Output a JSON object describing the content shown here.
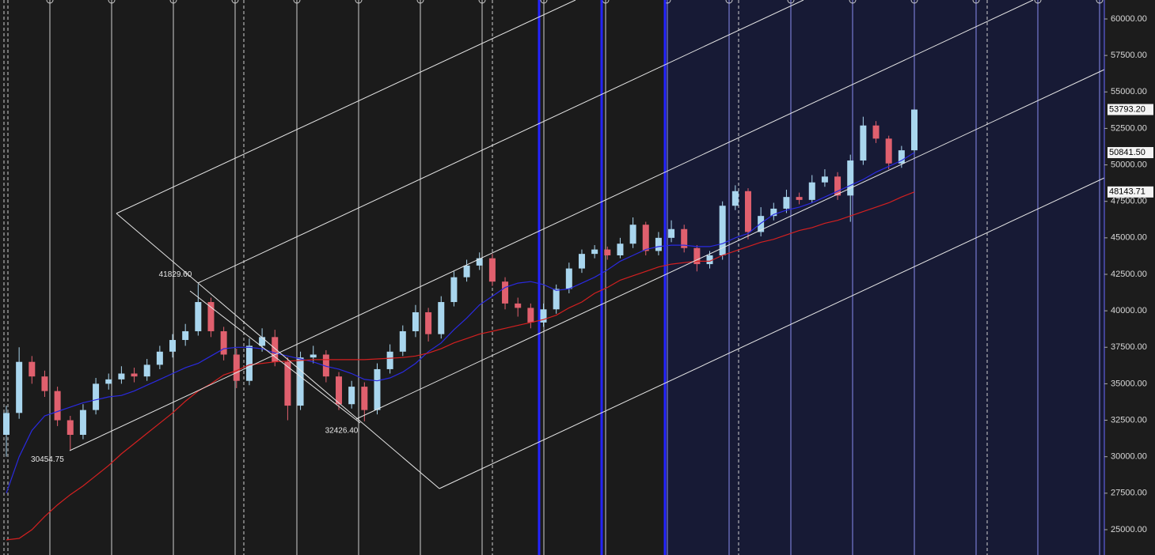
{
  "chart_data": {
    "type": "candlestick",
    "open": [
      31500,
      33000,
      36500,
      35500,
      34500,
      32500,
      31500,
      33200,
      35000,
      35300,
      35700,
      35500,
      36300,
      37200,
      38000,
      38600,
      40600,
      38600,
      37000,
      35200,
      37600,
      38200,
      36500,
      33500,
      36800,
      37000,
      35500,
      33600,
      34800,
      33200,
      36000,
      37200,
      38600,
      39900,
      38400,
      40600,
      42300,
      43100,
      43600,
      42000,
      40500,
      40200,
      39200,
      40100,
      41500,
      42900,
      43900,
      44200,
      43800,
      44600,
      45900,
      44100,
      45000,
      45600,
      44300,
      43200,
      43800,
      47200,
      48200,
      45400,
      46500,
      47000,
      47800,
      47600,
      48800,
      49200,
      47900,
      50300,
      52700,
      51800,
      50100,
      51000
    ],
    "high": [
      33500,
      37500,
      36900,
      35900,
      34800,
      32800,
      33600,
      35400,
      35700,
      36200,
      36100,
      36700,
      37600,
      38400,
      39100,
      41829.6,
      40900,
      38900,
      37400,
      38100,
      38800,
      38700,
      36800,
      37200,
      37600,
      37300,
      35800,
      35200,
      35100,
      36400,
      37700,
      39000,
      40400,
      40200,
      41000,
      42700,
      43500,
      44000,
      43900,
      42300,
      40900,
      40500,
      40500,
      41800,
      43300,
      44200,
      44500,
      44400,
      45000,
      46400,
      46100,
      45400,
      46200,
      45900,
      44500,
      44100,
      47500,
      48600,
      48400,
      47100,
      47400,
      48300,
      48100,
      49300,
      49700,
      49500,
      50700,
      53300,
      53000,
      52000,
      51300,
      53793.2
    ],
    "low": [
      30000,
      32600,
      35000,
      34100,
      32100,
      30454.75,
      31200,
      32900,
      34600,
      35000,
      35100,
      35200,
      36000,
      36800,
      37600,
      38300,
      38200,
      36600,
      34700,
      34900,
      37200,
      36200,
      32500,
      33200,
      36400,
      35100,
      33200,
      33300,
      32426.4,
      32900,
      35700,
      36900,
      38200,
      37900,
      38100,
      40300,
      42000,
      42800,
      41700,
      40100,
      39600,
      38800,
      38900,
      39800,
      41200,
      42600,
      43600,
      43500,
      43600,
      44300,
      43800,
      43800,
      44700,
      44000,
      42700,
      42900,
      43500,
      46900,
      44900,
      45100,
      46200,
      46700,
      47300,
      47400,
      48500,
      47600,
      46100,
      50000,
      51500,
      49700,
      49800,
      50800
    ],
    "close": [
      33000,
      36500,
      35500,
      34500,
      32500,
      31500,
      33200,
      35000,
      35300,
      35700,
      35500,
      36300,
      37200,
      38000,
      38600,
      40600,
      38600,
      37000,
      35200,
      37600,
      38200,
      36500,
      33500,
      36800,
      37000,
      35500,
      33600,
      34800,
      33200,
      36000,
      37200,
      38600,
      39900,
      38400,
      40600,
      42300,
      43100,
      43600,
      42000,
      40500,
      40200,
      39200,
      40100,
      41500,
      42900,
      43900,
      44200,
      43800,
      44600,
      45900,
      44100,
      45000,
      45600,
      44300,
      43200,
      43800,
      47200,
      48200,
      45400,
      46500,
      47000,
      47800,
      47600,
      48800,
      49200,
      47900,
      50300,
      52700,
      51800,
      50100,
      51000,
      53793.2
    ],
    "up_color": "#a9d6ee",
    "down_color": "#e0606e",
    "series": [
      {
        "color": "#2a2ae0",
        "values": [
          27500,
          30000,
          31800,
          32800,
          33100,
          33400,
          33700,
          33900,
          34100,
          34200,
          34500,
          34900,
          35300,
          35700,
          36100,
          36400,
          36900,
          37400,
          37500,
          37500,
          37400,
          37100,
          36900,
          36700,
          36500,
          36200,
          36000,
          35700,
          35300,
          35200,
          35400,
          35800,
          36400,
          37200,
          37800,
          38700,
          39500,
          40400,
          41000,
          41600,
          41900,
          42000,
          41800,
          41400,
          41500,
          41900,
          42300,
          42800,
          43400,
          43800,
          44200,
          44400,
          44500,
          44500,
          44400,
          44400,
          44600,
          45000,
          45300,
          46000,
          46600,
          46900,
          47100,
          47400,
          47800,
          48200,
          48600,
          49000,
          49500,
          49900,
          50300,
          50841.5
        ]
      },
      {
        "color": "#d42020",
        "values": [
          24300,
          24400,
          25000,
          25900,
          26700,
          27400,
          28000,
          28700,
          29400,
          30200,
          30900,
          31600,
          32300,
          33000,
          33800,
          34500,
          35000,
          35600,
          35900,
          36300,
          36400,
          36500,
          36550,
          36600,
          36650,
          36650,
          36650,
          36650,
          36650,
          36700,
          36750,
          36800,
          36900,
          37100,
          37400,
          37800,
          38100,
          38400,
          38600,
          38800,
          39000,
          39200,
          39400,
          39700,
          40200,
          40600,
          41200,
          41600,
          42100,
          42400,
          42700,
          43000,
          43200,
          43300,
          43400,
          43400,
          43800,
          44100,
          44400,
          44700,
          44900,
          45200,
          45500,
          45700,
          46000,
          46200,
          46500,
          46800,
          47100,
          47400,
          47800,
          48143.71
        ]
      }
    ],
    "ylim": [
      23264,
      61300
    ],
    "yticks": [
      {
        "value": 25000,
        "label": "25000.00"
      },
      {
        "value": 27500,
        "label": "27500.00"
      },
      {
        "value": 30000,
        "label": "30000.00"
      },
      {
        "value": 32500,
        "label": "32500.00"
      },
      {
        "value": 35000,
        "label": "35000.00"
      },
      {
        "value": 37500,
        "label": "37500.00"
      },
      {
        "value": 40000,
        "label": "40000.00"
      },
      {
        "value": 42500,
        "label": "42500.00"
      },
      {
        "value": 45000,
        "label": "45000.00"
      },
      {
        "value": 47500,
        "label": "47500.00"
      },
      {
        "value": 50000,
        "label": "50000.00"
      },
      {
        "value": 52500,
        "label": "52500.00"
      },
      {
        "value": 55000,
        "label": "55000.00"
      },
      {
        "value": 57500,
        "label": "57500.00"
      },
      {
        "value": 60000,
        "label": "60000.00"
      }
    ],
    "price_tags": [
      {
        "value": 53793.2,
        "label": "53793.20"
      },
      {
        "value": 50841.5,
        "label": "50841.50"
      },
      {
        "value": 48143.71,
        "label": "48143.71"
      }
    ],
    "annotations": [
      {
        "value": 41829.6,
        "label": "41829.60"
      },
      {
        "value": 32426.4,
        "label": "32426.40"
      },
      {
        "value": 30454.75,
        "label": "30454.75"
      }
    ]
  }
}
